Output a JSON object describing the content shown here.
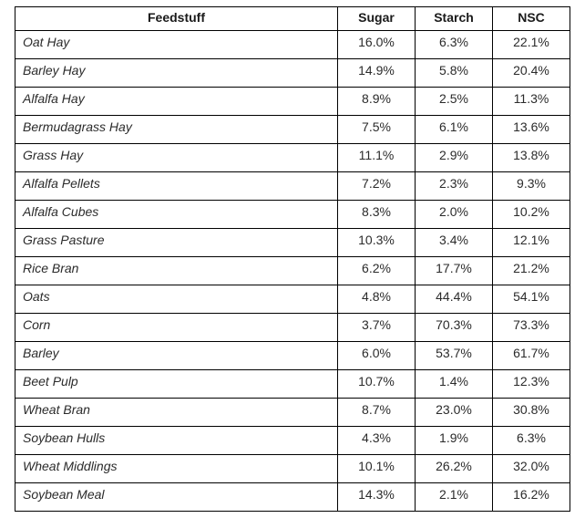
{
  "colors": {
    "background": "#ffffff",
    "border": "#000000",
    "header_text": "#1a1a1a",
    "body_text": "#2b2b2b"
  },
  "table": {
    "header": [
      "Feedstuff",
      "Sugar",
      "Starch",
      "NSC"
    ],
    "rows": [
      [
        "Oat Hay",
        "16.0%",
        "6.3%",
        "22.1%"
      ],
      [
        "Barley Hay",
        "14.9%",
        "5.8%",
        "20.4%"
      ],
      [
        "Alfalfa Hay",
        "8.9%",
        "2.5%",
        "11.3%"
      ],
      [
        "Bermudagrass Hay",
        "7.5%",
        "6.1%",
        "13.6%"
      ],
      [
        "Grass Hay",
        "11.1%",
        "2.9%",
        "13.8%"
      ],
      [
        "Alfalfa Pellets",
        "7.2%",
        "2.3%",
        "9.3%"
      ],
      [
        "Alfalfa Cubes",
        "8.3%",
        "2.0%",
        "10.2%"
      ],
      [
        "Grass Pasture",
        "10.3%",
        "3.4%",
        "12.1%"
      ],
      [
        "Rice Bran",
        "6.2%",
        "17.7%",
        "21.2%"
      ],
      [
        "Oats",
        "4.8%",
        "44.4%",
        "54.1%"
      ],
      [
        "Corn",
        "3.7%",
        "70.3%",
        "73.3%"
      ],
      [
        "Barley",
        "6.0%",
        "53.7%",
        "61.7%"
      ],
      [
        "Beet Pulp",
        "10.7%",
        "1.4%",
        "12.3%"
      ],
      [
        "Wheat Bran",
        "8.7%",
        "23.0%",
        "30.8%"
      ],
      [
        "Soybean Hulls",
        "4.3%",
        "1.9%",
        "6.3%"
      ],
      [
        "Wheat Middlings",
        "10.1%",
        "26.2%",
        "32.0%"
      ],
      [
        "Soybean Meal",
        "14.3%",
        "2.1%",
        "16.2%"
      ]
    ]
  },
  "chart_data": {
    "type": "table",
    "title": "",
    "columns": [
      "Feedstuff",
      "Sugar",
      "Starch",
      "NSC"
    ],
    "categories": [
      "Oat Hay",
      "Barley Hay",
      "Alfalfa Hay",
      "Bermudagrass Hay",
      "Grass Hay",
      "Alfalfa Pellets",
      "Alfalfa Cubes",
      "Grass Pasture",
      "Rice Bran",
      "Oats",
      "Corn",
      "Barley",
      "Beet Pulp",
      "Wheat Bran",
      "Soybean Hulls",
      "Wheat Middlings",
      "Soybean Meal"
    ],
    "series": [
      {
        "name": "Sugar",
        "values": [
          16.0,
          14.9,
          8.9,
          7.5,
          11.1,
          7.2,
          8.3,
          10.3,
          6.2,
          4.8,
          3.7,
          6.0,
          10.7,
          8.7,
          4.3,
          10.1,
          14.3
        ]
      },
      {
        "name": "Starch",
        "values": [
          6.3,
          5.8,
          2.5,
          6.1,
          2.9,
          2.3,
          2.0,
          3.4,
          17.7,
          44.4,
          70.3,
          53.7,
          1.4,
          23.0,
          1.9,
          26.2,
          2.1
        ]
      },
      {
        "name": "NSC",
        "values": [
          22.1,
          20.4,
          11.3,
          13.6,
          13.8,
          9.3,
          10.2,
          12.1,
          21.2,
          54.1,
          73.3,
          61.7,
          12.3,
          30.8,
          6.3,
          32.0,
          16.2
        ]
      }
    ],
    "unit": "%"
  }
}
